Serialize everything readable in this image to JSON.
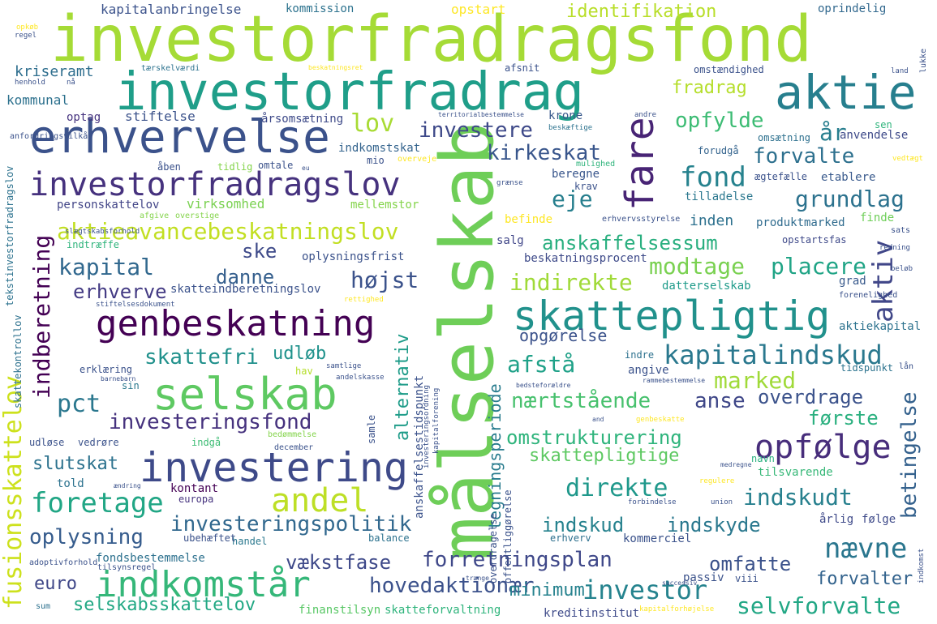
{
  "words": [
    {
      "text": "investorfradragsfond",
      "color": "#a5db36"
    },
    {
      "text": "investorfradrag",
      "color": "#1f9e89"
    },
    {
      "text": "aktie",
      "color": "#277f8e"
    },
    {
      "text": "erhvervelse",
      "color": "#3b528b"
    },
    {
      "text": "investorfradragslov",
      "color": "#46327e"
    },
    {
      "text": "målselskab",
      "color": "#6ece58"
    },
    {
      "text": "fare",
      "color": "#482475"
    },
    {
      "text": "skattepligtig",
      "color": "#21918c"
    },
    {
      "text": "genbeskatning",
      "color": "#440154"
    },
    {
      "text": "selskab",
      "color": "#5ec962"
    },
    {
      "text": "investering",
      "color": "#3e4a89"
    },
    {
      "text": "aktieavancebeskatningslov",
      "color": "#c2df23"
    },
    {
      "text": "kapitalindskud",
      "color": "#2a788e"
    },
    {
      "text": "opfølge",
      "color": "#472d7b"
    },
    {
      "text": "indkomstår",
      "color": "#35b779"
    },
    {
      "text": "andel",
      "color": "#bddf26"
    },
    {
      "text": "foretage",
      "color": "#21a685"
    },
    {
      "text": "direkte",
      "color": "#1f988b"
    },
    {
      "text": "investeringspolitik",
      "color": "#31688e"
    },
    {
      "text": "forretningsplan",
      "color": "#3f4889"
    },
    {
      "text": "hovedaktionær",
      "color": "#3b518b"
    },
    {
      "text": "investor",
      "color": "#25838e"
    },
    {
      "text": "selvforvalte",
      "color": "#22a785"
    },
    {
      "text": "fusionsskattelov",
      "color": "#cde11d"
    },
    {
      "text": "indberetning",
      "color": "#440154"
    },
    {
      "text": "kapital",
      "color": "#31688e"
    },
    {
      "text": "danne",
      "color": "#355f8d"
    },
    {
      "text": "modtage",
      "color": "#7ad151"
    },
    {
      "text": "placere",
      "color": "#20a486"
    },
    {
      "text": "indirekte",
      "color": "#a0da39"
    },
    {
      "text": "aktiv",
      "color": "#404688"
    },
    {
      "text": "anskaffelsessum",
      "color": "#29af7f"
    },
    {
      "text": "grundlag",
      "color": "#2c728e"
    },
    {
      "text": "fond",
      "color": "#26828e"
    },
    {
      "text": "forvalte",
      "color": "#2d708e"
    },
    {
      "text": "lov",
      "color": "#a8db34"
    },
    {
      "text": "investere",
      "color": "#3e4989"
    },
    {
      "text": "kirkeskat",
      "color": "#39568c"
    },
    {
      "text": "eje",
      "color": "#277f8e"
    },
    {
      "text": "fradrag",
      "color": "#b5de2b"
    },
    {
      "text": "opfylde",
      "color": "#3dbc74"
    },
    {
      "text": "år",
      "color": "#277e8e"
    },
    {
      "text": "ske",
      "color": "#3e4a89"
    },
    {
      "text": "højst",
      "color": "#3b528b"
    },
    {
      "text": "erhverve",
      "color": "#443b84"
    },
    {
      "text": "pct",
      "color": "#2a778e"
    },
    {
      "text": "skattefri",
      "color": "#21918c"
    },
    {
      "text": "udløb",
      "color": "#20928c"
    },
    {
      "text": "investeringsfond",
      "color": "#46327e"
    },
    {
      "text": "alternativ",
      "color": "#1e9c89"
    },
    {
      "text": "afstå",
      "color": "#1fa188"
    },
    {
      "text": "marked",
      "color": "#a0da39"
    },
    {
      "text": "nærtstående",
      "color": "#48c16e"
    },
    {
      "text": "anse",
      "color": "#3f4788"
    },
    {
      "text": "overdrage",
      "color": "#3b528b"
    },
    {
      "text": "første",
      "color": "#2ab07f"
    },
    {
      "text": "omstrukturering",
      "color": "#2fb47c"
    },
    {
      "text": "skattepligtige",
      "color": "#5ec962"
    },
    {
      "text": "betingelse",
      "color": "#34618d"
    },
    {
      "text": "indskudt",
      "color": "#27808e"
    },
    {
      "text": "indskud",
      "color": "#26828e"
    },
    {
      "text": "indskyde",
      "color": "#2a788e"
    },
    {
      "text": "nævne",
      "color": "#2a768e"
    },
    {
      "text": "omfatte",
      "color": "#3b528b"
    },
    {
      "text": "forvalter",
      "color": "#33638d"
    },
    {
      "text": "tegningsperiode",
      "color": "#287c8e"
    },
    {
      "text": "opgørelse",
      "color": "#3b528b"
    },
    {
      "text": "minimum",
      "color": "#26828e"
    },
    {
      "text": "vækstfase",
      "color": "#3e4989"
    },
    {
      "text": "oplysning",
      "color": "#365c8d"
    },
    {
      "text": "slutskat",
      "color": "#2c728e"
    },
    {
      "text": "euro",
      "color": "#3f4788"
    },
    {
      "text": "selskabsskattelov",
      "color": "#22a884"
    },
    {
      "text": "kapitalanbringelse",
      "color": "#3b528b"
    },
    {
      "text": "kommission",
      "color": "#2c728e"
    },
    {
      "text": "opstart",
      "color": "#fde725"
    },
    {
      "text": "identifikation",
      "color": "#b8de29"
    },
    {
      "text": "oprindelig",
      "color": "#31688e"
    },
    {
      "text": "kriseramt",
      "color": "#2e6e8e"
    },
    {
      "text": "kommunal",
      "color": "#2d718e"
    },
    {
      "text": "optag",
      "color": "#46337f"
    },
    {
      "text": "stiftelse",
      "color": "#3b528b"
    },
    {
      "text": "årsomsætning",
      "color": "#3e4a89"
    },
    {
      "text": "krone",
      "color": "#38598c"
    },
    {
      "text": "indkomstskat",
      "color": "#33638d"
    },
    {
      "text": "personskattelov",
      "color": "#414487"
    },
    {
      "text": "virksomhed",
      "color": "#7ad151"
    },
    {
      "text": "mellemstor",
      "color": "#84d44b"
    },
    {
      "text": "beregne",
      "color": "#39568c"
    },
    {
      "text": "omsætning",
      "color": "#2d708e"
    },
    {
      "text": "anvendelse",
      "color": "#3e4a89"
    },
    {
      "text": "forudgå",
      "color": "#33638d"
    },
    {
      "text": "ægtefælle",
      "color": "#3b528b"
    },
    {
      "text": "etablere",
      "color": "#38598c"
    },
    {
      "text": "tilladelse",
      "color": "#2a778e"
    },
    {
      "text": "inden",
      "color": "#2d718e"
    },
    {
      "text": "produktmarked",
      "color": "#2f6b8e"
    },
    {
      "text": "finde",
      "color": "#6ece58"
    },
    {
      "text": "befinde",
      "color": "#fde725"
    },
    {
      "text": "opstartsfas",
      "color": "#3e4989"
    },
    {
      "text": "salg",
      "color": "#404688"
    },
    {
      "text": "beskatningsprocent",
      "color": "#3e4a89"
    },
    {
      "text": "oplysningsfrist",
      "color": "#3b528b"
    },
    {
      "text": "skatteindberetningslov",
      "color": "#3b528b"
    },
    {
      "text": "datterselskab",
      "color": "#1e9b8a"
    },
    {
      "text": "grad",
      "color": "#38598c"
    },
    {
      "text": "aktiekapital",
      "color": "#2c728e"
    },
    {
      "text": "indre",
      "color": "#2d718e"
    },
    {
      "text": "angive",
      "color": "#3b528b"
    },
    {
      "text": "tidspunkt",
      "color": "#2c738e"
    },
    {
      "text": "navn",
      "color": "#2ab07f"
    },
    {
      "text": "tilsvarende",
      "color": "#37b878"
    },
    {
      "text": "følge",
      "color": "#3e4a89"
    },
    {
      "text": "årlig",
      "color": "#3e4989"
    },
    {
      "text": "kommerciel",
      "color": "#3b528b"
    },
    {
      "text": "passiv",
      "color": "#3b528b"
    },
    {
      "text": "viii",
      "color": "#3b528b"
    },
    {
      "text": "erhverv",
      "color": "#2d708e"
    },
    {
      "text": "balance",
      "color": "#2c728e"
    },
    {
      "text": "handel",
      "color": "#2a788e"
    },
    {
      "text": "fondsbestemmelse",
      "color": "#2d718e"
    },
    {
      "text": "kontant",
      "color": "#440154"
    },
    {
      "text": "europa",
      "color": "#46337f"
    },
    {
      "text": "indgå",
      "color": "#3dbc74"
    },
    {
      "text": "udløse",
      "color": "#3b528b"
    },
    {
      "text": "vedrøre",
      "color": "#3b528b"
    },
    {
      "text": "told",
      "color": "#2c728e"
    },
    {
      "text": "sin",
      "color": "#2a788e"
    },
    {
      "text": "erklæring",
      "color": "#3b528b"
    },
    {
      "text": "hav",
      "color": "#b5de2b"
    },
    {
      "text": "finanstilsyn",
      "color": "#58c765"
    },
    {
      "text": "skatteforvaltning",
      "color": "#2fb47c"
    },
    {
      "text": "kreditinstitut",
      "color": "#3e4a89"
    },
    {
      "text": "ubehæftet",
      "color": "#3b528b"
    },
    {
      "text": "sum",
      "color": "#2d718e"
    },
    {
      "text": "adoptivforhold",
      "color": "#3b528b"
    },
    {
      "text": "tilsynsregel",
      "color": "#3b528b"
    },
    {
      "text": "samle",
      "color": "#3b528b"
    },
    {
      "text": "december",
      "color": "#3b528b"
    },
    {
      "text": "bedømmelse",
      "color": "#84d44b"
    },
    {
      "text": "barnebarn",
      "color": "#3b528b"
    },
    {
      "text": "andelskasse",
      "color": "#3b528b"
    },
    {
      "text": "samtlige",
      "color": "#3b528b"
    },
    {
      "text": "rettighed",
      "color": "#fde725"
    },
    {
      "text": "stiftelsesdokument",
      "color": "#3b528b"
    },
    {
      "text": "afgive",
      "color": "#84d44b"
    },
    {
      "text": "overstige",
      "color": "#84d44b"
    },
    {
      "text": "indtræffe",
      "color": "#2fb47c"
    },
    {
      "text": "slægtskabsforhold",
      "color": "#3b528b"
    },
    {
      "text": "tekstinvestorfradragslov",
      "color": "#2c728e"
    },
    {
      "text": "skattekontrollov",
      "color": "#2d718e"
    },
    {
      "text": "anskaffelsestidspunkt",
      "color": "#3b528b"
    },
    {
      "text": "investeringsordning",
      "color": "#3b528b"
    },
    {
      "text": "kapitalforening",
      "color": "#3b528b"
    },
    {
      "text": "overdragelse",
      "color": "#3b528b"
    },
    {
      "text": "offentliggørelse",
      "color": "#3b528b"
    },
    {
      "text": "indkomst",
      "color": "#3b528b"
    },
    {
      "text": "opkøb",
      "color": "#fde725"
    },
    {
      "text": "regel",
      "color": "#3b528b"
    },
    {
      "text": "tærskelværdi",
      "color": "#2c728e"
    },
    {
      "text": "henhold",
      "color": "#3b528b"
    },
    {
      "text": "nå",
      "color": "#3b528b"
    },
    {
      "text": "anfordringsvilkår",
      "color": "#3b528b"
    },
    {
      "text": "beskatningsret",
      "color": "#fde725"
    },
    {
      "text": "afsnit",
      "color": "#3b528b"
    },
    {
      "text": "territorialbestemmelse",
      "color": "#3b528b"
    },
    {
      "text": "beskæftige",
      "color": "#2c728e"
    },
    {
      "text": "andre",
      "color": "#3b528b"
    },
    {
      "text": "åben",
      "color": "#3b528b"
    },
    {
      "text": "tidlig",
      "color": "#84d44b"
    },
    {
      "text": "omtale",
      "color": "#3b528b"
    },
    {
      "text": "eu",
      "color": "#3b528b"
    },
    {
      "text": "mio",
      "color": "#3b528b"
    },
    {
      "text": "overveje",
      "color": "#fde725"
    },
    {
      "text": "mulighed",
      "color": "#2fb47c"
    },
    {
      "text": "grænse",
      "color": "#3b528b"
    },
    {
      "text": "krav",
      "color": "#3b528b"
    },
    {
      "text": "erhvervsstyrelse",
      "color": "#3b528b"
    },
    {
      "text": "sats",
      "color": "#3b528b"
    },
    {
      "text": "redning",
      "color": "#3b528b"
    },
    {
      "text": "beløb",
      "color": "#3b528b"
    },
    {
      "text": "forenelighed",
      "color": "#3b528b"
    },
    {
      "text": "sen",
      "color": "#2fb47c"
    },
    {
      "text": "land",
      "color": "#3b528b"
    },
    {
      "text": "lukke",
      "color": "#3b528b"
    },
    {
      "text": "vedtægt",
      "color": "#fde725"
    },
    {
      "text": "omstændighed",
      "color": "#3b528b"
    },
    {
      "text": "rammebestemmelse",
      "color": "#3b528b"
    },
    {
      "text": "bedsteforældre",
      "color": "#3b528b"
    },
    {
      "text": "lån",
      "color": "#3b528b"
    },
    {
      "text": "and",
      "color": "#3b528b"
    },
    {
      "text": "genbeskatte",
      "color": "#fde725"
    },
    {
      "text": "medregne",
      "color": "#3b528b"
    },
    {
      "text": "regulere",
      "color": "#fde725"
    },
    {
      "text": "union",
      "color": "#3b528b"
    },
    {
      "text": "forbindelse",
      "color": "#3b528b"
    },
    {
      "text": "trænge",
      "color": "#3b528b"
    },
    {
      "text": "successiv",
      "color": "#3b528b"
    },
    {
      "text": "kapitalforhøjelse",
      "color": "#fde725"
    },
    {
      "text": "ændring",
      "color": "#3b528b"
    }
  ]
}
